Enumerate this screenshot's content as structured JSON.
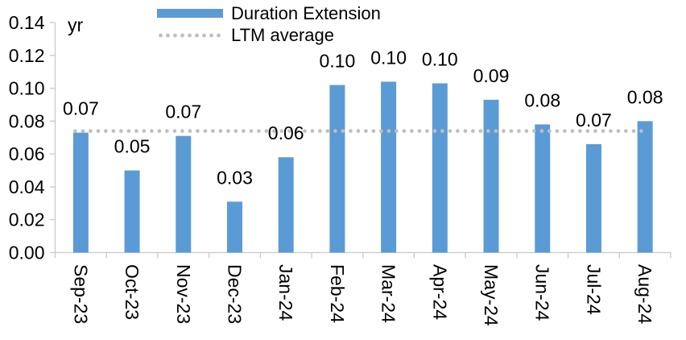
{
  "chart_data": {
    "type": "bar",
    "title": "",
    "unit_label": "yr",
    "categories": [
      "Sep-23",
      "Oct-23",
      "Nov-23",
      "Dec-23",
      "Jan-24",
      "Feb-24",
      "Mar-24",
      "Apr-24",
      "May-24",
      "Jun-24",
      "Jul-24",
      "Aug-24"
    ],
    "series": [
      {
        "name": "Duration Extension",
        "type": "bar",
        "color": "#5B9BD5",
        "values": [
          0.073,
          0.05,
          0.071,
          0.031,
          0.058,
          0.102,
          0.104,
          0.103,
          0.093,
          0.078,
          0.066,
          0.08
        ],
        "data_labels": [
          "0.07",
          "0.05",
          "0.07",
          "0.03",
          "0.06",
          "0.10",
          "0.10",
          "0.10",
          "0.09",
          "0.08",
          "0.07",
          "0.08"
        ]
      },
      {
        "name": "LTM average",
        "type": "dotted-line",
        "color": "#BFBFBF",
        "value": 0.074
      }
    ],
    "y_axis": {
      "min": 0,
      "max": 0.14,
      "tick_labels": [
        "0.00",
        "0.02",
        "0.04",
        "0.06",
        "0.08",
        "0.10",
        "0.12",
        "0.14"
      ]
    },
    "grid": "off",
    "legend_position": "top",
    "axis_color": "#C9C9C9",
    "text_color": "#000000",
    "background_color": "#FFFFFF"
  }
}
